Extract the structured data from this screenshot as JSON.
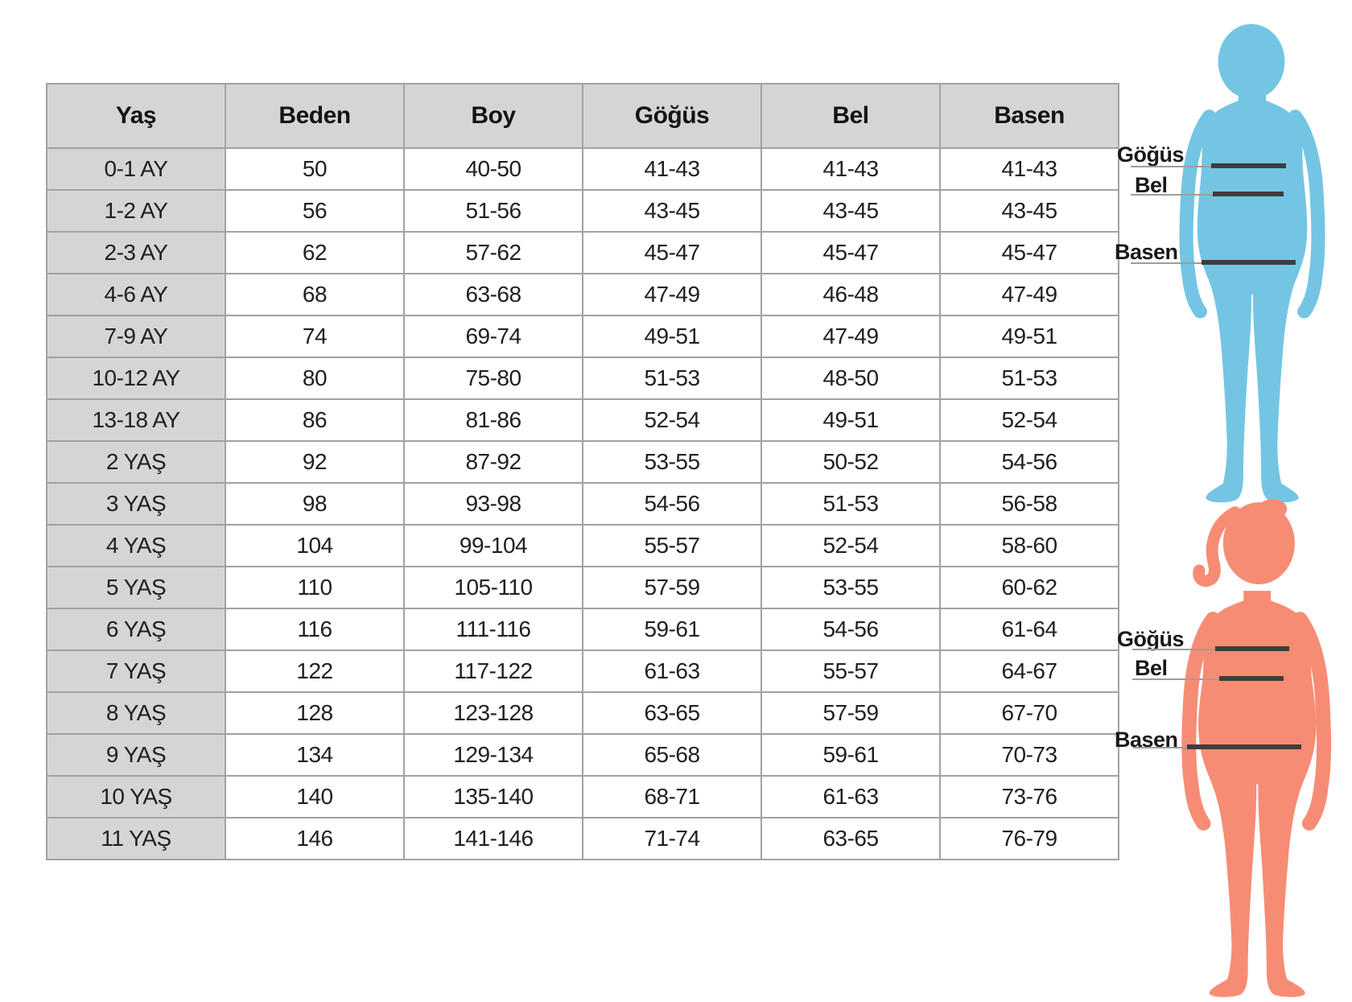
{
  "table": {
    "headers": [
      "Yaş",
      "Beden",
      "Boy",
      "Göğüs",
      "Bel",
      "Basen"
    ],
    "rows": [
      [
        "0-1 AY",
        "50",
        "40-50",
        "41-43",
        "41-43",
        "41-43"
      ],
      [
        "1-2 AY",
        "56",
        "51-56",
        "43-45",
        "43-45",
        "43-45"
      ],
      [
        "2-3 AY",
        "62",
        "57-62",
        "45-47",
        "45-47",
        "45-47"
      ],
      [
        "4-6 AY",
        "68",
        "63-68",
        "47-49",
        "46-48",
        "47-49"
      ],
      [
        "7-9 AY",
        "74",
        "69-74",
        "49-51",
        "47-49",
        "49-51"
      ],
      [
        "10-12 AY",
        "80",
        "75-80",
        "51-53",
        "48-50",
        "51-53"
      ],
      [
        "13-18 AY",
        "86",
        "81-86",
        "52-54",
        "49-51",
        "52-54"
      ],
      [
        "2 YAŞ",
        "92",
        "87-92",
        "53-55",
        "50-52",
        "54-56"
      ],
      [
        "3 YAŞ",
        "98",
        "93-98",
        "54-56",
        "51-53",
        "56-58"
      ],
      [
        "4 YAŞ",
        "104",
        "99-104",
        "55-57",
        "52-54",
        "58-60"
      ],
      [
        "5 YAŞ",
        "110",
        "105-110",
        "57-59",
        "53-55",
        "60-62"
      ],
      [
        "6 YAŞ",
        "116",
        "111-116",
        "59-61",
        "54-56",
        "61-64"
      ],
      [
        "7 YAŞ",
        "122",
        "117-122",
        "61-63",
        "55-57",
        "64-67"
      ],
      [
        "8 YAŞ",
        "128",
        "123-128",
        "63-65",
        "57-59",
        "67-70"
      ],
      [
        "9 YAŞ",
        "134",
        "129-134",
        "65-68",
        "59-61",
        "70-73"
      ],
      [
        "10 YAŞ",
        "140",
        "135-140",
        "68-71",
        "61-63",
        "73-76"
      ],
      [
        "11 YAŞ",
        "146",
        "141-146",
        "71-74",
        "63-65",
        "76-79"
      ]
    ]
  },
  "figure_labels": {
    "chest": "Göğüs",
    "waist": "Bel",
    "hip": "Basen"
  },
  "figures": {
    "boy": {
      "color": "#74C5E3"
    },
    "girl": {
      "color": "#F78C75"
    }
  },
  "colors": {
    "header_bg": "#d5d5d5",
    "rowhead_bg": "#d5d5d5",
    "measure_line": "#3d3d3d",
    "guide_line": "#9d9d9d"
  }
}
